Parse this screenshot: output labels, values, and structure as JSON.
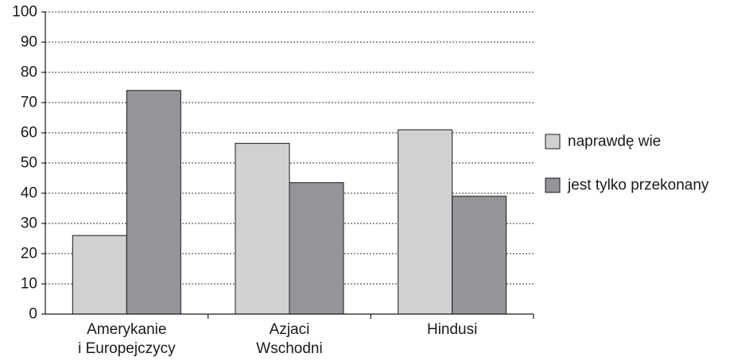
{
  "chart_data": {
    "type": "bar",
    "title": "",
    "xlabel": "",
    "ylabel": "",
    "ylim": [
      0,
      100
    ],
    "yticks": [
      0,
      10,
      20,
      30,
      40,
      50,
      60,
      70,
      80,
      90,
      100
    ],
    "grid": true,
    "legend_position": "right",
    "categories": [
      [
        "Amerykanie",
        "i Europejczycy"
      ],
      [
        "Azjaci",
        "Wschodni"
      ],
      [
        "Hindusi"
      ]
    ],
    "series": [
      {
        "name": "naprawdę wie",
        "color": "#d0d1d3",
        "values": [
          26,
          56.5,
          61
        ]
      },
      {
        "name": "jest tylko przekonany",
        "color": "#939598",
        "values": [
          74,
          43.5,
          39
        ]
      }
    ]
  }
}
